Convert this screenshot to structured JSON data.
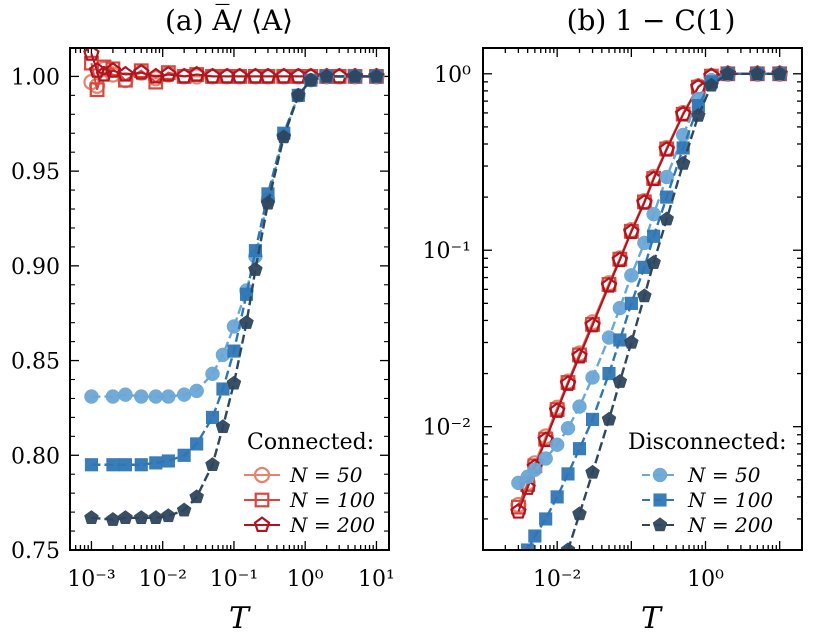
{
  "chart_data": [
    {
      "type": "scatter",
      "title": "(a) A̅/ ⟨A⟩",
      "xlabel": "T",
      "ylabel": "",
      "xscale": "log",
      "xlim": [
        0.0005,
        15
      ],
      "ylim": [
        0.75,
        1.015
      ],
      "x_ticks": [
        "10⁻³",
        "10⁻²",
        "10⁻¹",
        "10⁰",
        "10¹"
      ],
      "y_ticks": [
        "0.75",
        "0.80",
        "0.85",
        "0.90",
        "0.95",
        "1.00"
      ],
      "legend": {
        "title": "Connected:",
        "placement": "lower-right",
        "entries": [
          "N = 50",
          "N = 100",
          "N = 200"
        ]
      },
      "series": [
        {
          "name": "N = 50",
          "group": "Connected",
          "marker": "circle",
          "color": "#e8826a",
          "filled": false,
          "x": [
            0.001,
            0.0012,
            0.0015,
            0.002,
            0.003,
            0.005,
            0.008,
            0.012,
            0.02,
            0.03,
            0.05,
            0.08,
            0.12,
            0.2,
            0.3,
            0.5,
            0.8,
            1.2,
            2,
            3,
            5,
            10
          ],
          "y": [
            0.997,
            0.995,
            1.004,
            1.001,
            0.998,
            1.002,
            0.999,
            1.001,
            1.0,
            1.0,
            1.0,
            1.0,
            1.0,
            1.0,
            1.0,
            1.0,
            1.0,
            1.0,
            1.0,
            1.0,
            1.0,
            1.0
          ]
        },
        {
          "name": "N = 100",
          "group": "Connected",
          "marker": "square",
          "color": "#d9463e",
          "filled": false,
          "x": [
            0.001,
            0.0012,
            0.0015,
            0.002,
            0.003,
            0.005,
            0.008,
            0.012,
            0.02,
            0.03,
            0.05,
            0.08,
            0.12,
            0.2,
            0.3,
            0.5,
            0.8,
            1.2,
            2,
            3,
            5,
            10
          ],
          "y": [
            1.007,
            0.993,
            1.005,
            1.004,
            0.998,
            1.003,
            0.997,
            1.002,
            1.0,
            1.001,
            1.0,
            1.0,
            1.0,
            1.0,
            1.0,
            1.0,
            1.0,
            1.0,
            1.0,
            1.0,
            1.0,
            1.0
          ]
        },
        {
          "name": "N = 200",
          "group": "Connected",
          "marker": "pentagon",
          "color": "#b0141f",
          "filled": false,
          "x": [
            0.001,
            0.0012,
            0.0015,
            0.002,
            0.003,
            0.005,
            0.008,
            0.012,
            0.02,
            0.03,
            0.05,
            0.08,
            0.12,
            0.2,
            0.3,
            0.5,
            0.8,
            1.2,
            2,
            3,
            5,
            10
          ],
          "y": [
            1.012,
            1.003,
            1.001,
            1.003,
            1.001,
            1.002,
            1.0,
            1.001,
            1.0,
            1.001,
            1.0,
            1.0,
            1.0,
            1.0,
            1.0,
            1.0,
            1.0,
            1.0,
            1.0,
            1.0,
            1.0,
            1.0
          ]
        },
        {
          "name": "N = 50",
          "group": "Disconnected",
          "marker": "circle",
          "color": "#6aa7d6",
          "filled": true,
          "x": [
            0.001,
            0.002,
            0.003,
            0.005,
            0.008,
            0.012,
            0.02,
            0.03,
            0.05,
            0.07,
            0.1,
            0.15,
            0.2,
            0.3,
            0.5,
            0.8,
            1.2,
            2,
            5,
            10
          ],
          "y": [
            0.831,
            0.831,
            0.832,
            0.831,
            0.831,
            0.831,
            0.832,
            0.834,
            0.843,
            0.853,
            0.868,
            0.887,
            0.905,
            0.935,
            0.969,
            0.99,
            0.998,
            1.0,
            1.0,
            1.0
          ]
        },
        {
          "name": "N = 100",
          "group": "Disconnected",
          "marker": "square",
          "color": "#2f76b5",
          "filled": true,
          "x": [
            0.001,
            0.002,
            0.003,
            0.005,
            0.008,
            0.012,
            0.02,
            0.03,
            0.05,
            0.07,
            0.1,
            0.15,
            0.2,
            0.3,
            0.5,
            0.8,
            1.2,
            2,
            5,
            10
          ],
          "y": [
            0.795,
            0.795,
            0.795,
            0.795,
            0.796,
            0.797,
            0.8,
            0.806,
            0.82,
            0.835,
            0.855,
            0.885,
            0.908,
            0.938,
            0.97,
            0.99,
            0.998,
            1.0,
            1.0,
            1.0
          ]
        },
        {
          "name": "N = 200",
          "group": "Disconnected",
          "marker": "pentagon",
          "color": "#2e465e",
          "filled": true,
          "x": [
            0.001,
            0.002,
            0.003,
            0.005,
            0.008,
            0.012,
            0.02,
            0.03,
            0.05,
            0.07,
            0.1,
            0.15,
            0.2,
            0.3,
            0.5,
            0.8,
            1.2,
            2,
            5,
            10
          ],
          "y": [
            0.767,
            0.766,
            0.767,
            0.767,
            0.767,
            0.768,
            0.771,
            0.778,
            0.795,
            0.815,
            0.838,
            0.87,
            0.898,
            0.933,
            0.968,
            0.99,
            0.998,
            1.0,
            1.0,
            1.0
          ]
        }
      ]
    },
    {
      "type": "scatter",
      "title": "(b) 1 − C(1)",
      "xlabel": "T",
      "ylabel": "",
      "xscale": "log",
      "yscale": "log",
      "xlim": [
        0.001,
        20
      ],
      "ylim": [
        0.002,
        1.4
      ],
      "x_ticks": [
        "10⁻²",
        "10⁰"
      ],
      "y_ticks": [
        "10⁻²",
        "10⁻¹",
        "10⁰"
      ],
      "legend": {
        "title": "Disconnected:",
        "placement": "lower-right",
        "entries": [
          "N = 50",
          "N = 100",
          "N = 200"
        ]
      },
      "series": [
        {
          "name": "N = 50",
          "group": "Connected",
          "marker": "circle",
          "color": "#e8826a",
          "filled": false,
          "x": [
            0.003,
            0.004,
            0.005,
            0.007,
            0.01,
            0.014,
            0.02,
            0.03,
            0.05,
            0.07,
            0.1,
            0.15,
            0.2,
            0.3,
            0.5,
            0.8,
            1.2,
            2,
            5,
            10
          ],
          "y": [
            0.0036,
            0.0048,
            0.0062,
            0.0088,
            0.0128,
            0.018,
            0.026,
            0.039,
            0.065,
            0.09,
            0.13,
            0.19,
            0.26,
            0.38,
            0.6,
            0.85,
            0.97,
            1.0,
            1.0,
            1.0
          ]
        },
        {
          "name": "N = 100",
          "group": "Connected",
          "marker": "square",
          "color": "#d9463e",
          "filled": false,
          "x": [
            0.003,
            0.004,
            0.005,
            0.007,
            0.01,
            0.014,
            0.02,
            0.03,
            0.05,
            0.07,
            0.1,
            0.15,
            0.2,
            0.3,
            0.5,
            0.8,
            1.2,
            2,
            5,
            10
          ],
          "y": [
            0.0035,
            0.0047,
            0.006,
            0.0085,
            0.0125,
            0.0178,
            0.0255,
            0.038,
            0.064,
            0.089,
            0.128,
            0.188,
            0.255,
            0.375,
            0.59,
            0.84,
            0.97,
            1.0,
            1.0,
            1.0
          ]
        },
        {
          "name": "N = 200",
          "group": "Connected",
          "marker": "pentagon",
          "color": "#b0141f",
          "filled": false,
          "x": [
            0.003,
            0.004,
            0.005,
            0.007,
            0.01,
            0.014,
            0.02,
            0.03,
            0.05,
            0.07,
            0.1,
            0.15,
            0.2,
            0.3,
            0.5,
            0.8,
            1.2,
            2,
            5,
            10
          ],
          "y": [
            0.0033,
            0.0045,
            0.0059,
            0.0084,
            0.0123,
            0.0175,
            0.025,
            0.0375,
            0.063,
            0.088,
            0.127,
            0.186,
            0.253,
            0.372,
            0.59,
            0.84,
            0.97,
            1.0,
            1.0,
            1.0
          ]
        },
        {
          "name": "N = 50",
          "group": "Disconnected",
          "marker": "circle",
          "color": "#6aa7d6",
          "filled": true,
          "x": [
            0.003,
            0.004,
            0.005,
            0.007,
            0.01,
            0.014,
            0.02,
            0.03,
            0.05,
            0.07,
            0.1,
            0.15,
            0.2,
            0.3,
            0.5,
            0.8,
            1.2,
            2,
            5,
            10
          ],
          "y": [
            0.0048,
            0.0052,
            0.0057,
            0.0066,
            0.0079,
            0.0098,
            0.013,
            0.019,
            0.032,
            0.047,
            0.072,
            0.11,
            0.16,
            0.26,
            0.45,
            0.72,
            0.92,
            1.0,
            1.0,
            1.0
          ]
        },
        {
          "name": "N = 100",
          "group": "Disconnected",
          "marker": "square",
          "color": "#2f76b5",
          "filled": true,
          "x": [
            0.004,
            0.005,
            0.007,
            0.01,
            0.014,
            0.02,
            0.03,
            0.05,
            0.07,
            0.1,
            0.15,
            0.2,
            0.3,
            0.5,
            0.8,
            1.2,
            2,
            5,
            10
          ],
          "y": [
            0.002,
            0.0024,
            0.003,
            0.004,
            0.0054,
            0.0075,
            0.011,
            0.02,
            0.031,
            0.05,
            0.08,
            0.12,
            0.2,
            0.38,
            0.66,
            0.9,
            1.0,
            1.0,
            1.0
          ]
        },
        {
          "name": "N = 200",
          "group": "Disconnected",
          "marker": "pentagon",
          "color": "#2e465e",
          "filled": true,
          "x": [
            0.014,
            0.02,
            0.03,
            0.05,
            0.07,
            0.1,
            0.15,
            0.2,
            0.3,
            0.5,
            0.8,
            1.2,
            2,
            5,
            10
          ],
          "y": [
            0.002,
            0.0032,
            0.0055,
            0.011,
            0.018,
            0.03,
            0.055,
            0.085,
            0.15,
            0.31,
            0.58,
            0.86,
            1.0,
            1.0,
            1.0
          ]
        }
      ]
    }
  ]
}
